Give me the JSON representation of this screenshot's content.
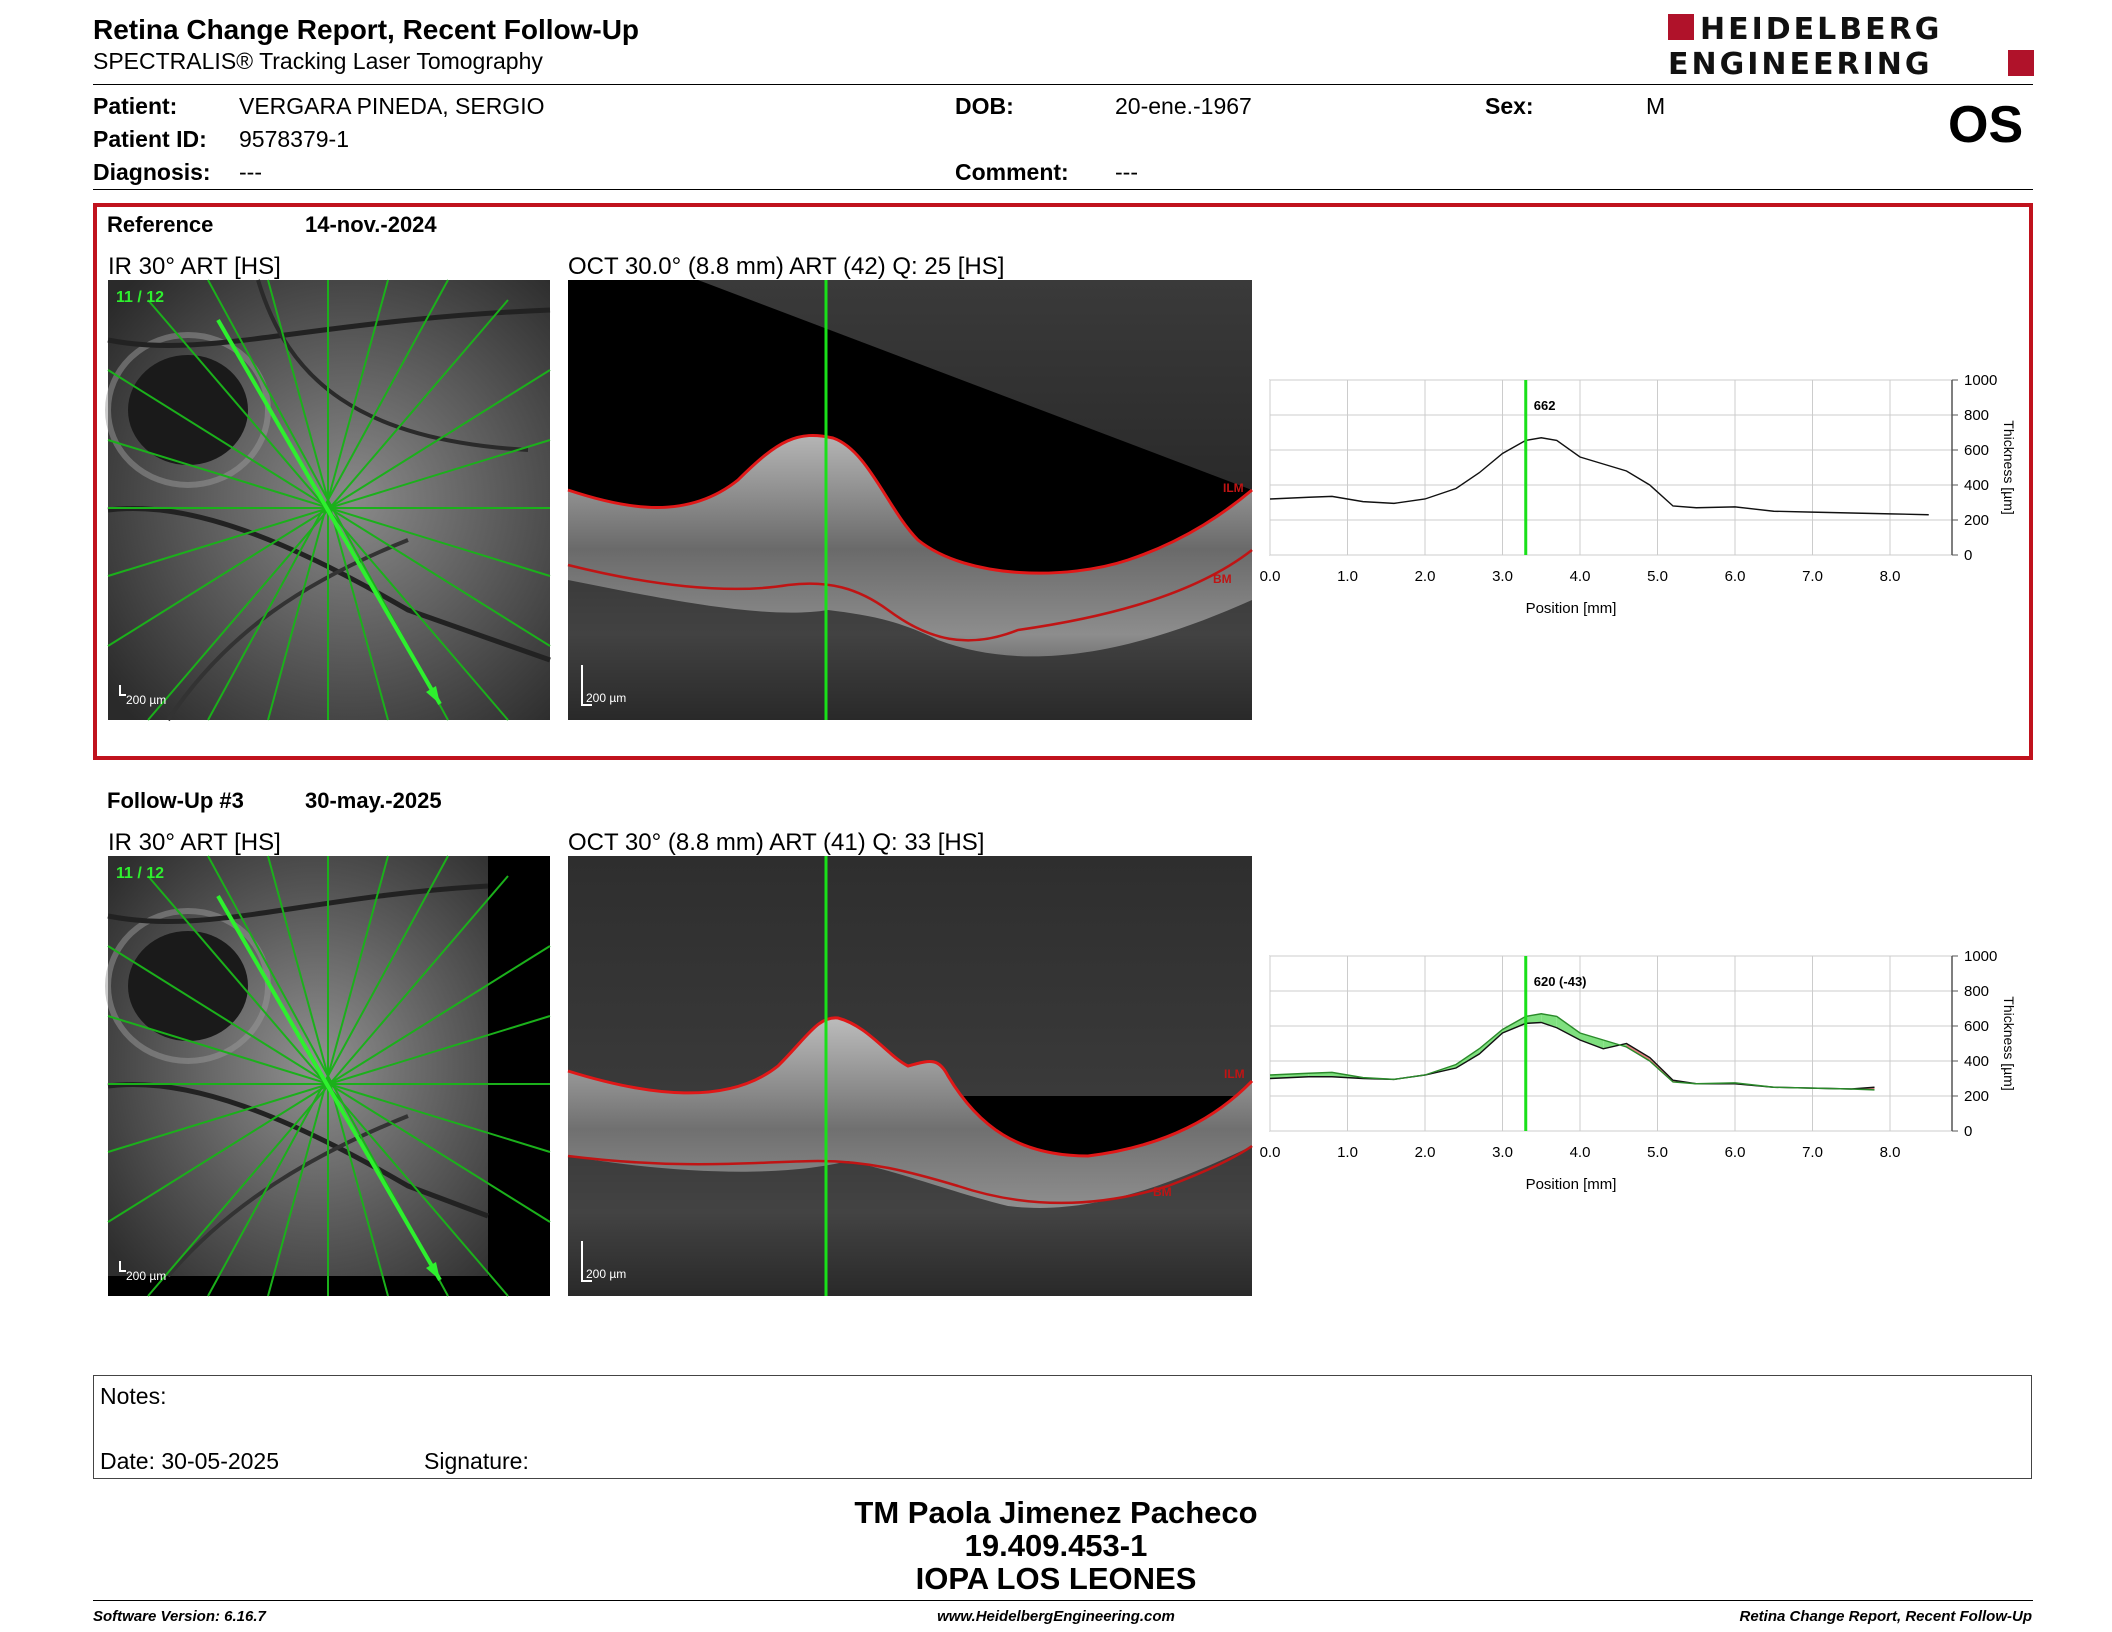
{
  "header": {
    "title": "Retina Change Report, Recent Follow-Up",
    "subtitle": "SPECTRALIS® Tracking Laser Tomography",
    "logo_line1": "HEIDELBERG",
    "logo_line2": "ENGINEERING",
    "eye": "OS"
  },
  "patient": {
    "patient_label": "Patient:",
    "patient_value": "VERGARA PINEDA, SERGIO",
    "id_label": "Patient ID:",
    "id_value": "9578379-1",
    "diagnosis_label": "Diagnosis:",
    "diagnosis_value": "---",
    "dob_label": "DOB:",
    "dob_value": "20-ene.-1967",
    "comment_label": "Comment:",
    "comment_value": "---",
    "sex_label": "Sex:",
    "sex_value": "M"
  },
  "reference": {
    "label": "Reference",
    "date": "14-nov.-2024",
    "ir_label": "IR 30° ART [HS]",
    "ir_counter": "11 / 12",
    "oct_label": "OCT 30.0° (8.8 mm) ART (42) Q: 25 [HS]",
    "scale": "200 µm",
    "ilm": "ILM",
    "bm": "BM",
    "marker_value": "662"
  },
  "followup": {
    "label": "Follow-Up #3",
    "date": "30-may.-2025",
    "ir_label": "IR 30° ART [HS]",
    "ir_counter": "11 / 12",
    "oct_label": "OCT 30° (8.8 mm) ART (41) Q: 33 [HS]",
    "scale": "200 µm",
    "ilm": "ILM",
    "bm": "BM",
    "marker_value": "620 (-43)"
  },
  "graph": {
    "ylabel": "Thickness [µm]",
    "xlabel": "Position [mm]",
    "yticks": [
      "1000",
      "800",
      "600",
      "400",
      "200",
      "0"
    ],
    "xticks": [
      "0.0",
      "1.0",
      "2.0",
      "3.0",
      "4.0",
      "5.0",
      "6.0",
      "7.0",
      "8.0"
    ]
  },
  "chart_data": [
    {
      "type": "line",
      "xlabel": "Position [mm]",
      "ylabel": "Thickness [µm]",
      "xlim": [
        0,
        8.8
      ],
      "ylim": [
        0,
        1000
      ],
      "marker_x": 3.3,
      "marker_label": "662",
      "series": [
        {
          "x": [
            0,
            0.5,
            0.8,
            1.2,
            1.6,
            2.0,
            2.4,
            2.7,
            3.0,
            3.3,
            3.5,
            3.7,
            4.0,
            4.3,
            4.6,
            4.9,
            5.2,
            5.5,
            6.0,
            6.5,
            7.0,
            7.5,
            8.0,
            8.5
          ],
          "values": [
            320,
            330,
            335,
            305,
            295,
            320,
            380,
            470,
            580,
            655,
            670,
            655,
            560,
            520,
            480,
            400,
            280,
            270,
            275,
            250,
            245,
            240,
            235,
            230
          ]
        }
      ]
    },
    {
      "type": "line",
      "xlabel": "Position [mm]",
      "ylabel": "Thickness [µm]",
      "xlim": [
        0,
        8.8
      ],
      "ylim": [
        0,
        1000
      ],
      "marker_x": 3.3,
      "marker_label": "620 (-43)",
      "series": [
        {
          "x": [
            0,
            0.5,
            0.8,
            1.2,
            1.6,
            2.0,
            2.4,
            2.7,
            3.0,
            3.3,
            3.5,
            3.7,
            4.0,
            4.3,
            4.6,
            4.9,
            5.2,
            5.5,
            6.0,
            6.5,
            7.0,
            7.5,
            7.8
          ],
          "values": [
            300,
            310,
            310,
            300,
            295,
            320,
            360,
            440,
            560,
            615,
            620,
            590,
            520,
            470,
            500,
            420,
            290,
            270,
            270,
            250,
            245,
            240,
            250
          ]
        },
        {
          "x": [
            0,
            0.5,
            0.8,
            1.2,
            1.6,
            2.0,
            2.4,
            2.7,
            3.0,
            3.3,
            3.5,
            3.7,
            4.0,
            4.3,
            4.6,
            4.9,
            5.2,
            5.5,
            6.0,
            6.5,
            7.0,
            7.5,
            7.8
          ],
          "values": [
            320,
            330,
            335,
            305,
            295,
            320,
            380,
            470,
            580,
            655,
            670,
            655,
            560,
            520,
            480,
            400,
            280,
            270,
            275,
            250,
            245,
            240,
            235
          ]
        }
      ]
    }
  ],
  "notes": {
    "notes_label": "Notes:",
    "date_label": "Date: 30-05-2025",
    "signature_label": "Signature:"
  },
  "signer": {
    "name": "TM Paola Jimenez Pacheco",
    "rut": "19.409.453-1",
    "org": "IOPA LOS LEONES"
  },
  "footer": {
    "software": "Software Version: 6.16.7",
    "url": "www.HeidelbergEngineering.com",
    "report": "Retina Change Report, Recent Follow-Up"
  },
  "colors": {
    "accent_red": "#c0121d",
    "scan_green": "#19e019",
    "logo_red": "#b0122a"
  }
}
